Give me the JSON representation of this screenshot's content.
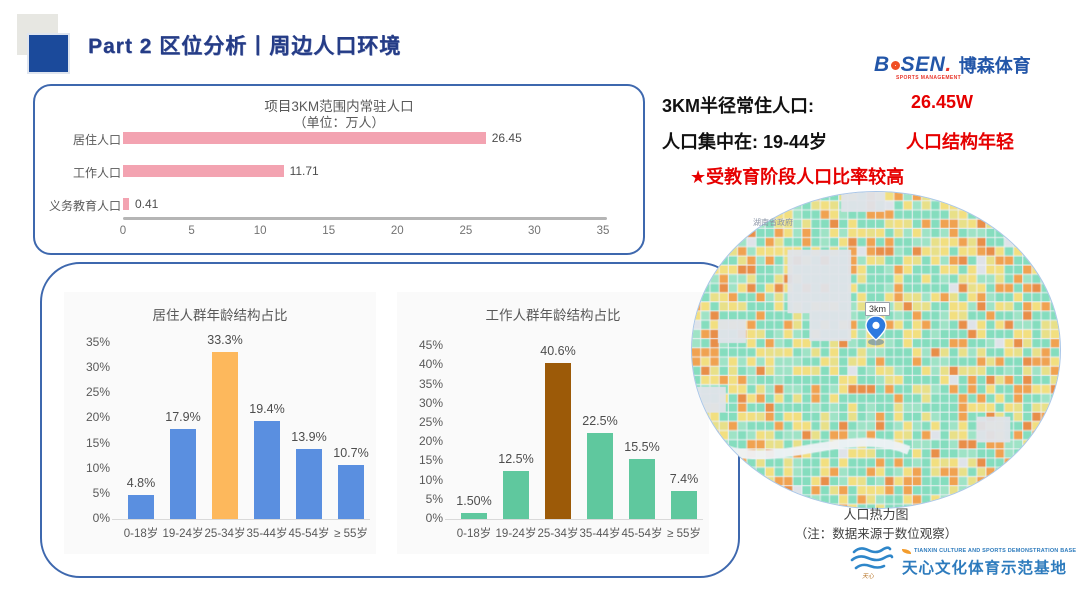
{
  "header": {
    "title": "Part 2 区位分析丨周边人口环境"
  },
  "bosen_logo": {
    "b": "B",
    "sen": "SEN",
    "dot": ".",
    "sub": "SPORTS MANAGEMENT",
    "cn": "博森体育"
  },
  "summary": {
    "line1_label": "3KM半径常住人口:",
    "line1_value": "26.45W",
    "line2_label": "人口集中在:  19-44岁",
    "line2_value": "人口结构年轻",
    "line3": "★受教育阶段人口比率较高"
  },
  "chart_data": [
    {
      "type": "bar",
      "orientation": "horizontal",
      "title": "项目3KM范围内常驻人口",
      "subtitle": "（单位：万人）",
      "categories": [
        "居住人口",
        "工作人口",
        "义务教育人口"
      ],
      "values": [
        26.45,
        11.71,
        0.41
      ],
      "value_labels": [
        "26.45",
        "11.71",
        "0.41"
      ],
      "xlim": [
        0,
        35
      ],
      "xticks": [
        0,
        5,
        10,
        15,
        20,
        25,
        30,
        35
      ],
      "bar_color": "#f3a3b1",
      "grid": false,
      "legend": "none"
    },
    {
      "type": "bar",
      "orientation": "vertical",
      "title": "居住人群年龄结构占比",
      "categories": [
        "0-18岁",
        "19-24岁",
        "25-34岁",
        "35-44岁",
        "45-54岁",
        "≥ 55岁"
      ],
      "values": [
        4.8,
        17.9,
        33.3,
        19.4,
        13.9,
        10.7
      ],
      "value_labels": [
        "4.8%",
        "17.9%",
        "33.3%",
        "19.4%",
        "13.9%",
        "10.7%"
      ],
      "ylim": [
        0,
        35
      ],
      "ytick_step": 5,
      "bar_color": "#5a8fe0",
      "highlight_index": 2,
      "highlight_color": "#fdb85c",
      "grid": false,
      "legend": "none"
    },
    {
      "type": "bar",
      "orientation": "vertical",
      "title": "工作人群年龄结构占比",
      "categories": [
        "0-18岁",
        "19-24岁",
        "25-34岁",
        "35-44岁",
        "45-54岁",
        "≥ 55岁"
      ],
      "values": [
        1.5,
        12.5,
        40.6,
        22.5,
        15.5,
        7.4
      ],
      "value_labels": [
        "1.50%",
        "12.5%",
        "40.6%",
        "22.5%",
        "15.5%",
        "7.4%"
      ],
      "ylim": [
        0,
        45
      ],
      "ytick_step": 5,
      "bar_color": "#5fc89e",
      "highlight_index": 2,
      "highlight_color": "#9c5a08",
      "grid": false,
      "legend": "none"
    }
  ],
  "heatmap": {
    "pin_label": "3km",
    "map_label": "湖南省政府",
    "caption_line1": "人口热力图",
    "caption_line2": "（注：数据来源于数位观察）",
    "palette": {
      "green": "#85ddbe",
      "green2": "#9fe3c6",
      "yellow": "#f2df80",
      "yellow2": "#e8e089",
      "orange": "#f0a251",
      "orange2": "#e88e49",
      "gray": "#dfe3e9"
    }
  },
  "footer_logo": {
    "en": "TIANXIN CULTURE AND SPORTS DEMONSTRATION BASE",
    "cn": "天心文化体育示范基地"
  }
}
